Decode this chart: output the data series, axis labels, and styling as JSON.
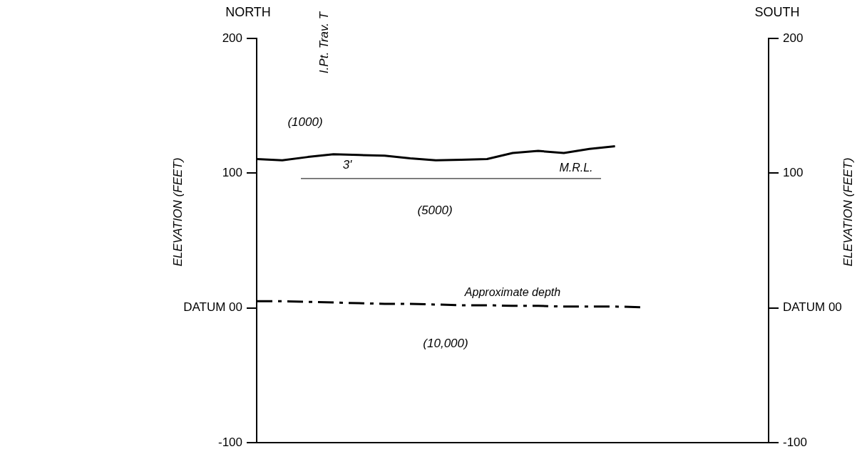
{
  "chart_data": {
    "type": "line",
    "ylabel": "ELEVATION (FEET)",
    "y2label": "ELEVATION (FEET)",
    "categories": [
      null,
      null,
      null,
      null,
      null,
      null,
      null,
      null,
      null,
      null,
      null,
      null,
      null,
      null,
      null,
      null,
      null,
      null,
      null,
      null,
      null
    ],
    "series": [
      {
        "color": "#000000",
        "values": [
          110.5,
          109.5,
          112,
          114,
          113.5,
          113,
          111,
          109.5,
          110,
          110.5,
          115,
          116.5,
          115,
          118,
          120,
          null,
          null,
          null,
          null,
          null,
          null
        ]
      },
      {
        "name": "Approximate depth",
        "color": "#000000",
        "line_style": "dashed",
        "values": [
          5,
          5,
          4.5,
          4,
          3.5,
          3,
          3,
          2.5,
          2,
          2,
          1.5,
          1.5,
          1,
          1,
          1,
          0.5,
          null,
          null,
          null,
          null,
          null
        ]
      }
    ],
    "ylim": [
      -100,
      200
    ],
    "yticks": [
      200,
      100,
      {
        "value": 0,
        "label": "DATUM 00"
      },
      -100
    ],
    "y2lim": [
      -100,
      200
    ],
    "y2ticks": [
      200,
      100,
      {
        "value": 0,
        "label": "DATUM 00"
      },
      -100
    ],
    "ref_lines": [
      {
        "axis": "y",
        "value": 96,
        "label": "M.R.L."
      }
    ],
    "annotations": [
      "NORTH",
      "SOUTH",
      "I.Pt. Trav. T",
      "(1000)",
      "3'",
      "(5000)",
      "(10,000)"
    ],
    "grid": false,
    "legend": false,
    "marker": "none"
  }
}
